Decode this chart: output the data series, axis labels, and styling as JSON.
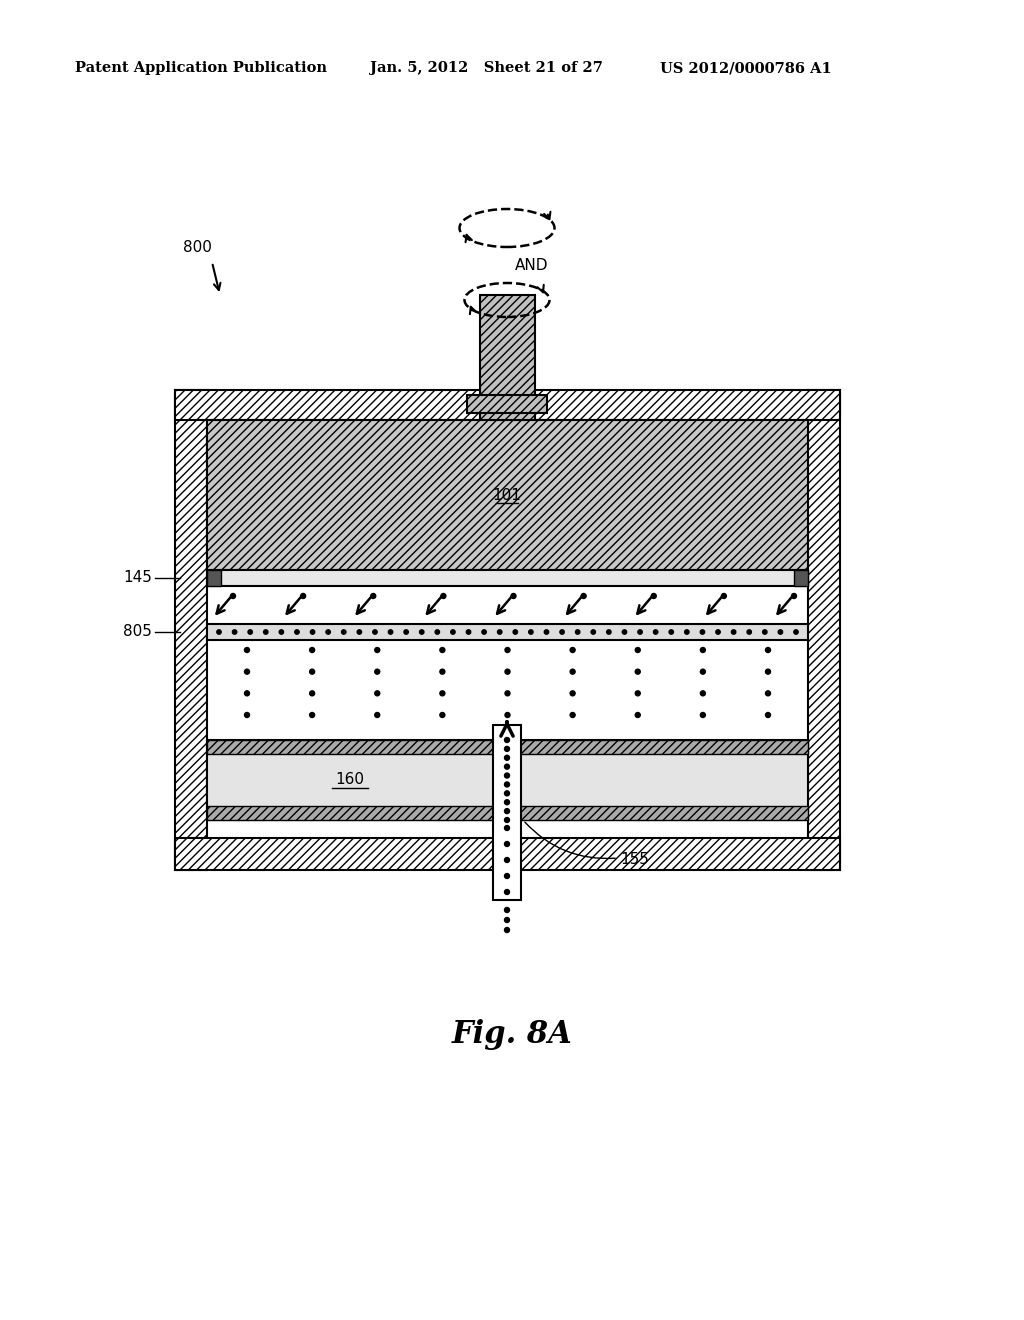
{
  "bg_color": "#ffffff",
  "header_left": "Patent Application Publication",
  "header_mid": "Jan. 5, 2012   Sheet 21 of 27",
  "header_right": "US 2012/0000786 A1",
  "fig_label": "Fig. 8A",
  "label_800": "800",
  "label_101": "101",
  "label_145": "145",
  "label_805": "805",
  "label_160": "160",
  "label_155": "155"
}
